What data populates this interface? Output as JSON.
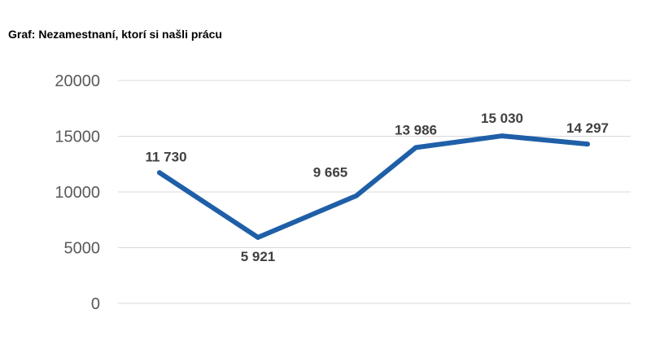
{
  "chart_data": {
    "type": "line",
    "title": "Graf: Nezamestnaní, ktorí si našli prácu",
    "xlabel": "",
    "ylabel": "",
    "ylim": [
      0,
      20000
    ],
    "yticks": [
      "20000",
      "15000",
      "10000",
      "5000",
      "0"
    ],
    "ytick_values": [
      20000,
      15000,
      10000,
      5000,
      0
    ],
    "grid": true,
    "legend": "none",
    "line_color": "#1F5FA8",
    "series": [
      {
        "values": [
          11730,
          5921,
          9665,
          13986,
          15030,
          14297
        ],
        "labels": [
          "11 730",
          "5 921",
          "9 665",
          "13 986",
          "15 030",
          "14 297"
        ]
      }
    ]
  }
}
